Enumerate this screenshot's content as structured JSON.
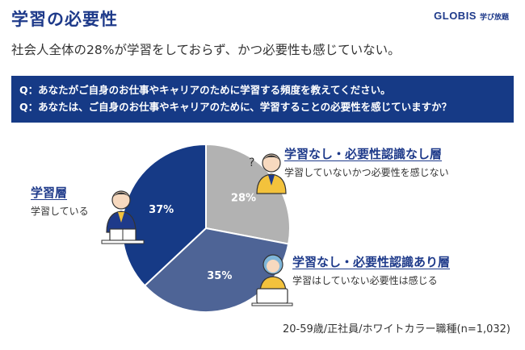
{
  "header": {
    "title": "学習の必要性",
    "brand": "GLOBIS",
    "brand_sub": "学び放題"
  },
  "subtitle": "社会人全体の28%が学習をしておらず、かつ必要性も感じていない。",
  "questions": [
    "Q：あなたがご自身のお仕事やキャリアのために学習する頻度を教えてください。",
    "Q：あなたは、ご自身のお仕事やキャリアのために、学習することの必要性を感じていますか？"
  ],
  "colors": {
    "navy": "#163a86",
    "slate": "#4e6496",
    "gray": "#b2b2b2"
  },
  "chart_data": {
    "type": "pie",
    "slices": [
      {
        "label": "学習なし・必要性認識なし層",
        "description": "学習していないかつ必要性を感じない",
        "value": 28,
        "value_label": "28%",
        "color": "#b2b2b2"
      },
      {
        "label": "学習なし・必要性認識あり層",
        "description": "学習はしていない必要性は感じる",
        "value": 35,
        "value_label": "35%",
        "color": "#4e6496"
      },
      {
        "label": "学習層",
        "description": "学習している",
        "value": 37,
        "value_label": "37%",
        "color": "#163a86"
      }
    ]
  },
  "footnote": "20-59歳/正社員/ホワイトカラー職種(n=1,032)"
}
